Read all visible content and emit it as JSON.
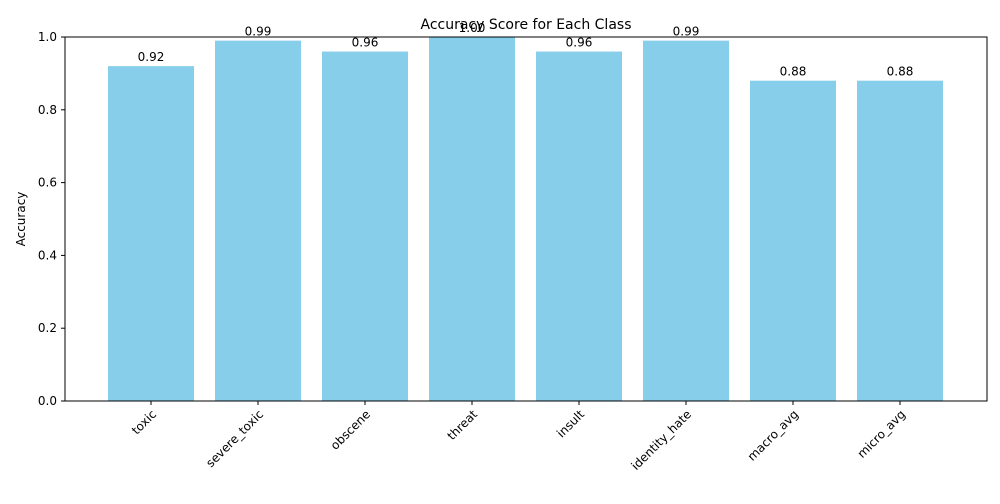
{
  "chart_data": {
    "type": "bar",
    "title": "Accuracy Score for Each Class",
    "xlabel": "",
    "ylabel": "Accuracy",
    "categories": [
      "toxic",
      "severe_toxic",
      "obscene",
      "threat",
      "insult",
      "identity_hate",
      "macro_avg",
      "micro_avg"
    ],
    "values": [
      0.92,
      0.99,
      0.96,
      1.0,
      0.96,
      0.99,
      0.88,
      0.88
    ],
    "value_labels": [
      "0.92",
      "0.99",
      "0.96",
      "1.00",
      "0.96",
      "0.99",
      "0.88",
      "0.88"
    ],
    "ylim": [
      0,
      1.0
    ],
    "yticks": [
      0.0,
      0.2,
      0.4,
      0.6,
      0.8,
      1.0
    ],
    "ytick_labels": [
      "0.0",
      "0.2",
      "0.4",
      "0.6",
      "0.8",
      "1.0"
    ],
    "bar_color": "#87CEEB",
    "grid": false,
    "legend": "none"
  }
}
